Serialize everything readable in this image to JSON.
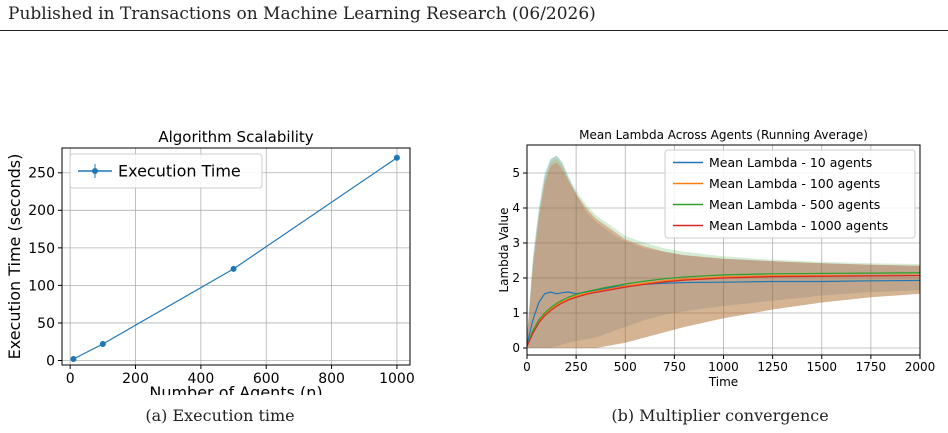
{
  "header": {
    "text": "Published in Transactions on Machine Learning Research (06/2026)"
  },
  "captions": {
    "a": "(a) Execution time",
    "b": "(b) Multiplier convergence"
  },
  "chart_data": [
    {
      "type": "line",
      "title": "Algorithm Scalability",
      "xlabel": "Number of Agents (n)",
      "ylabel": "Execution Time (seconds)",
      "xlim": [
        -25,
        1040
      ],
      "ylim": [
        -6,
        283
      ],
      "xticks": [
        0,
        200,
        400,
        600,
        800,
        1000
      ],
      "yticks": [
        0,
        50,
        100,
        150,
        200,
        250
      ],
      "grid": true,
      "legend_position": "top-left",
      "series": [
        {
          "name": "Execution Time",
          "color": "#1f77b4",
          "marker": "circle",
          "error_bars": true,
          "x": [
            10,
            100,
            500,
            1000
          ],
          "y": [
            2,
            22,
            122,
            270
          ]
        }
      ]
    },
    {
      "type": "line",
      "title": "Mean Lambda Across Agents (Running Average)",
      "xlabel": "Time",
      "ylabel": "Lambda Value",
      "xlim": [
        0,
        2000
      ],
      "ylim": [
        -0.2,
        5.8
      ],
      "xticks": [
        0,
        250,
        500,
        750,
        1000,
        1250,
        1500,
        1750,
        2000
      ],
      "yticks": [
        0,
        1,
        2,
        3,
        4,
        5
      ],
      "grid": true,
      "legend_position": "top-right",
      "bands": "shaded variability band around each series",
      "series": [
        {
          "name": "Mean Lambda - 10 agents",
          "color": "#1f77b4",
          "x": [
            0,
            30,
            60,
            90,
            120,
            150,
            180,
            210,
            250,
            300,
            350,
            400,
            450,
            500,
            600,
            700,
            800,
            1000,
            1250,
            1500,
            1750,
            2000
          ],
          "y": [
            0.1,
            0.8,
            1.3,
            1.55,
            1.6,
            1.55,
            1.58,
            1.6,
            1.55,
            1.6,
            1.65,
            1.7,
            1.75,
            1.78,
            1.82,
            1.85,
            1.87,
            1.88,
            1.9,
            1.9,
            1.92,
            1.93
          ],
          "band_upper": [
            0.3,
            2.6,
            4.0,
            5.0,
            5.4,
            5.5,
            5.3,
            4.9,
            4.4,
            3.9,
            3.6,
            3.4,
            3.2,
            3.05,
            2.85,
            2.75,
            2.65,
            2.55,
            2.48,
            2.42,
            2.38,
            2.35
          ],
          "band_lower": [
            0.0,
            0.0,
            0.0,
            0.0,
            0.0,
            0.05,
            0.1,
            0.15,
            0.2,
            0.25,
            0.3,
            0.4,
            0.5,
            0.6,
            0.8,
            0.95,
            1.05,
            1.2,
            1.35,
            1.5,
            1.6,
            1.65
          ]
        },
        {
          "name": "Mean Lambda - 100 agents",
          "color": "#ff7f0e",
          "x": [
            0,
            30,
            60,
            90,
            120,
            150,
            180,
            210,
            250,
            300,
            350,
            400,
            450,
            500,
            600,
            700,
            800,
            1000,
            1250,
            1500,
            1750,
            2000
          ],
          "y": [
            0.05,
            0.45,
            0.75,
            0.95,
            1.1,
            1.22,
            1.32,
            1.4,
            1.48,
            1.56,
            1.62,
            1.67,
            1.72,
            1.77,
            1.85,
            1.92,
            1.97,
            2.03,
            2.06,
            2.07,
            2.07,
            2.08
          ],
          "band_upper": [
            0.3,
            2.4,
            3.8,
            4.8,
            5.3,
            5.4,
            5.2,
            4.8,
            4.4,
            4.0,
            3.7,
            3.5,
            3.3,
            3.1,
            2.9,
            2.75,
            2.65,
            2.55,
            2.48,
            2.42,
            2.38,
            2.35
          ],
          "band_lower": [
            0.0,
            0.0,
            0.0,
            0.0,
            0.0,
            0.0,
            0.0,
            0.0,
            0.0,
            0.0,
            0.0,
            0.05,
            0.1,
            0.15,
            0.3,
            0.45,
            0.6,
            0.85,
            1.1,
            1.3,
            1.45,
            1.55
          ]
        },
        {
          "name": "Mean Lambda - 500 agents",
          "color": "#2ca02c",
          "x": [
            0,
            30,
            60,
            90,
            120,
            150,
            180,
            210,
            250,
            300,
            350,
            400,
            450,
            500,
            600,
            700,
            800,
            1000,
            1250,
            1500,
            1750,
            2000
          ],
          "y": [
            0.05,
            0.5,
            0.8,
            1.0,
            1.15,
            1.27,
            1.37,
            1.45,
            1.53,
            1.61,
            1.67,
            1.73,
            1.78,
            1.83,
            1.91,
            1.98,
            2.03,
            2.09,
            2.12,
            2.13,
            2.14,
            2.15
          ],
          "band_upper": [
            0.3,
            2.5,
            3.9,
            4.9,
            5.4,
            5.5,
            5.3,
            4.9,
            4.5,
            4.1,
            3.8,
            3.6,
            3.4,
            3.2,
            3.0,
            2.85,
            2.75,
            2.62,
            2.52,
            2.46,
            2.42,
            2.4
          ],
          "band_lower": [
            0.0,
            0.0,
            0.0,
            0.0,
            0.0,
            0.0,
            0.0,
            0.0,
            0.0,
            0.0,
            0.0,
            0.05,
            0.1,
            0.15,
            0.3,
            0.45,
            0.6,
            0.85,
            1.1,
            1.3,
            1.45,
            1.55
          ]
        },
        {
          "name": "Mean Lambda - 1000 agents",
          "color": "#d62728",
          "x": [
            0,
            30,
            60,
            90,
            120,
            150,
            180,
            210,
            250,
            300,
            350,
            400,
            450,
            500,
            600,
            700,
            800,
            1000,
            1250,
            1500,
            1750,
            2000
          ],
          "y": [
            0.05,
            0.42,
            0.72,
            0.92,
            1.07,
            1.19,
            1.29,
            1.37,
            1.45,
            1.53,
            1.59,
            1.64,
            1.69,
            1.74,
            1.82,
            1.89,
            1.94,
            2.0,
            2.04,
            2.05,
            2.06,
            2.07
          ],
          "band_upper": [
            0.3,
            2.3,
            3.7,
            4.7,
            5.2,
            5.3,
            5.1,
            4.8,
            4.4,
            4.0,
            3.7,
            3.5,
            3.3,
            3.1,
            2.9,
            2.75,
            2.65,
            2.55,
            2.48,
            2.42,
            2.38,
            2.35
          ],
          "band_lower": [
            0.0,
            0.0,
            0.0,
            0.0,
            0.0,
            0.0,
            0.0,
            0.0,
            0.0,
            0.0,
            0.0,
            0.05,
            0.1,
            0.15,
            0.3,
            0.45,
            0.6,
            0.85,
            1.1,
            1.3,
            1.45,
            1.55
          ]
        }
      ]
    }
  ]
}
